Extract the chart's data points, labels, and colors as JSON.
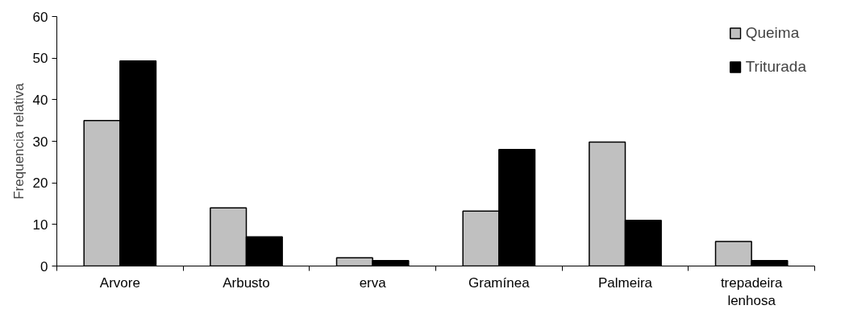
{
  "chart_data": {
    "type": "bar",
    "ylabel": "Frequencia relativa",
    "categories": [
      "Arvore",
      "Arbusto",
      "erva",
      "Gramínea",
      "Palmeira",
      "trepadeira\nlenhosa"
    ],
    "series": [
      {
        "name": "Queima",
        "color": "#c0c0c0",
        "values": [
          35,
          14,
          2,
          13.2,
          29.8,
          5.9
        ]
      },
      {
        "name": "Triturada",
        "color": "#000000",
        "values": [
          49.3,
          7,
          1.3,
          28,
          11,
          1.3
        ]
      }
    ],
    "ylim": [
      0,
      60
    ],
    "yticks": [
      0,
      10,
      20,
      30,
      40,
      50,
      60
    ],
    "grid": false,
    "legend": "top right"
  }
}
